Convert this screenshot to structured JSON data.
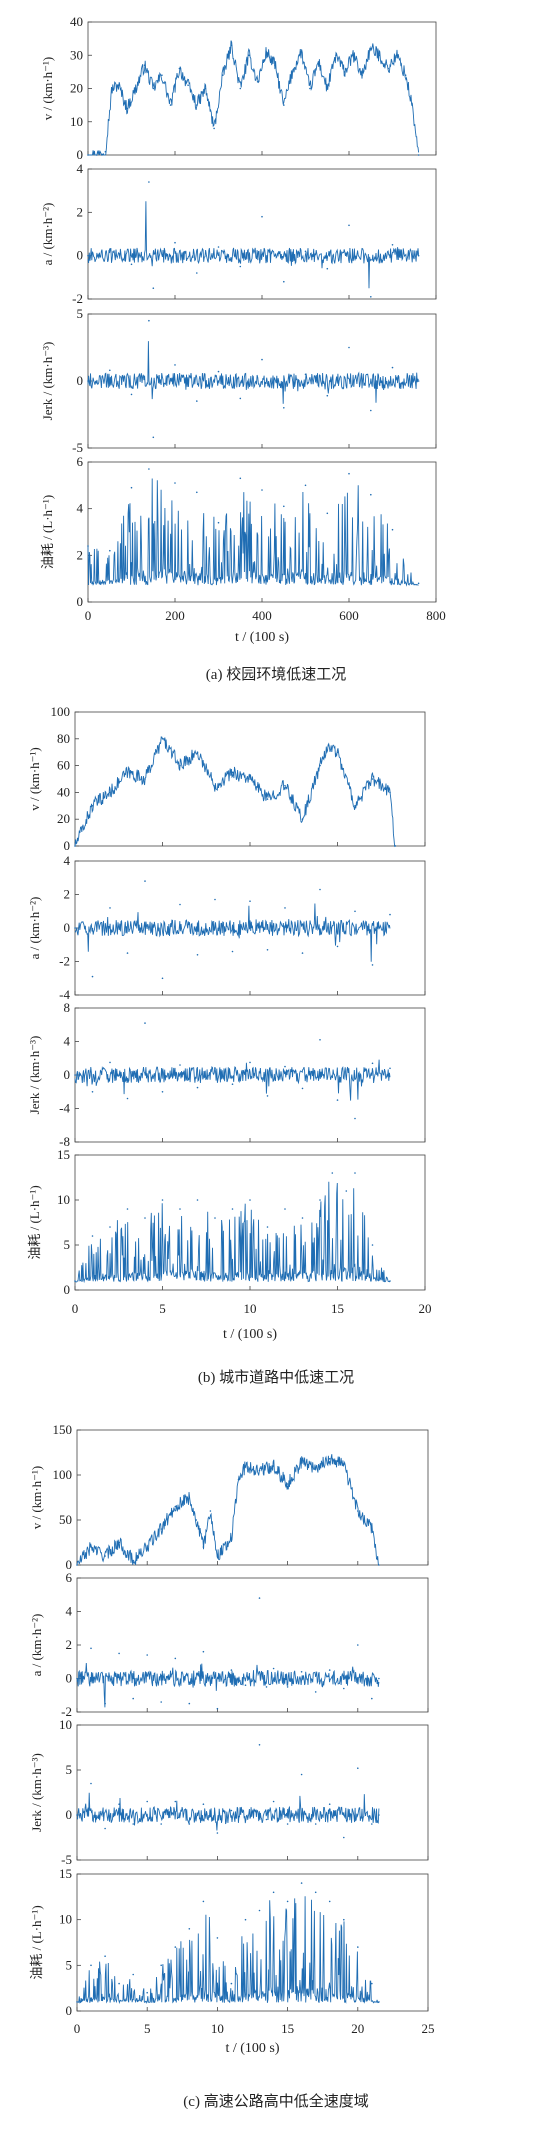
{
  "colors": {
    "line": "#1f6db3",
    "axis": "#444444",
    "text": "#222222"
  },
  "figures": [
    {
      "caption": "(a)  校园环境低速工况",
      "xlabel": "t / (100 s)",
      "xticks": [
        "0",
        "200",
        "400",
        "600",
        "800"
      ],
      "panels": [
        {
          "ylabel": "v / (km·h⁻¹)",
          "yticks": [
            "0",
            "10",
            "20",
            "30",
            "40"
          ]
        },
        {
          "ylabel": "a / (km·h⁻²)",
          "yticks": [
            "-2",
            "0",
            "2",
            "4"
          ]
        },
        {
          "ylabel": "Jerk / (km·h⁻³)",
          "yticks": [
            "-5",
            "0",
            "5"
          ]
        },
        {
          "ylabel": "油耗 / (L·h⁻¹)",
          "yticks": [
            "0",
            "2",
            "4",
            "6"
          ]
        }
      ]
    },
    {
      "caption": "(b)  城市道路中低速工况",
      "xlabel": "t / (100 s)",
      "xticks": [
        "0",
        "5",
        "10",
        "15",
        "20"
      ],
      "panels": [
        {
          "ylabel": "v / (km·h⁻¹)",
          "yticks": [
            "0",
            "20",
            "40",
            "60",
            "80",
            "100"
          ]
        },
        {
          "ylabel": "a / (km·h⁻²)",
          "yticks": [
            "-4",
            "-2",
            "0",
            "2",
            "4"
          ]
        },
        {
          "ylabel": "Jerk / (km·h⁻³)",
          "yticks": [
            "-8",
            "-4",
            "0",
            "4",
            "8"
          ]
        },
        {
          "ylabel": "油耗 / (L·h⁻¹)",
          "yticks": [
            "0",
            "5",
            "10",
            "15"
          ]
        }
      ]
    },
    {
      "caption": "(c)  高速公路高中低全速度域",
      "xlabel": "t / (100 s)",
      "xticks": [
        "0",
        "5",
        "10",
        "15",
        "20",
        "25"
      ],
      "panels": [
        {
          "ylabel": "v / (km·h⁻¹)",
          "yticks": [
            "0",
            "50",
            "100",
            "150"
          ]
        },
        {
          "ylabel": "a / (km·h⁻²)",
          "yticks": [
            "-2",
            "0",
            "2",
            "4",
            "6"
          ]
        },
        {
          "ylabel": "Jerk / (km·h⁻³)",
          "yticks": [
            "-5",
            "0",
            "5",
            "10"
          ]
        },
        {
          "ylabel": "油耗 / (L·h⁻¹)",
          "yticks": [
            "0",
            "5",
            "10",
            "15"
          ]
        }
      ]
    }
  ],
  "chart_data": [
    {
      "type": "line",
      "title": "(a)  校园环境低速工况",
      "xlabel": "t / (100 s)",
      "xlim": [
        0,
        800
      ],
      "subplots": [
        {
          "ylabel": "v / (km·h⁻¹)",
          "ylim": [
            0,
            40
          ],
          "x": [
            0,
            20,
            40,
            55,
            70,
            90,
            110,
            130,
            150,
            170,
            190,
            210,
            230,
            250,
            270,
            290,
            310,
            330,
            350,
            370,
            390,
            410,
            430,
            450,
            470,
            490,
            510,
            530,
            550,
            570,
            590,
            610,
            630,
            650,
            670,
            690,
            710,
            730,
            745,
            760
          ],
          "y": [
            0,
            0,
            1,
            20,
            21,
            14,
            20,
            27,
            20,
            24,
            15,
            26,
            21,
            15,
            20,
            8,
            24,
            33,
            20,
            30,
            22,
            31,
            27,
            15,
            25,
            31,
            20,
            28,
            20,
            30,
            25,
            30,
            24,
            32,
            30,
            26,
            30,
            24,
            15,
            0
          ]
        },
        {
          "ylabel": "a / (km·h⁻²)",
          "ylim": [
            -2,
            4
          ],
          "x": [
            0,
            50,
            100,
            140,
            150,
            200,
            250,
            300,
            350,
            400,
            450,
            500,
            550,
            600,
            650,
            700,
            760
          ],
          "y": [
            0,
            0.3,
            -0.4,
            3.4,
            -1.5,
            0.6,
            -0.8,
            0.4,
            -0.5,
            1.8,
            -1.2,
            0.2,
            -0.6,
            1.4,
            -1.9,
            0.5,
            0
          ]
        },
        {
          "ylabel": "Jerk / (km·h⁻³)",
          "ylim": [
            -5,
            5
          ],
          "x": [
            0,
            50,
            100,
            140,
            150,
            200,
            250,
            300,
            350,
            400,
            450,
            500,
            550,
            600,
            650,
            700,
            760
          ],
          "y": [
            0,
            0.8,
            -1,
            4.5,
            -4.2,
            1.2,
            -1.5,
            0.7,
            -1.3,
            1.6,
            -2,
            0.5,
            -1.1,
            2.5,
            -2.2,
            1,
            0
          ]
        },
        {
          "ylabel": "油耗 / (L·h⁻¹)",
          "ylim": [
            0,
            6
          ],
          "x": [
            0,
            50,
            100,
            140,
            200,
            250,
            300,
            350,
            400,
            450,
            500,
            550,
            600,
            650,
            700,
            760
          ],
          "y": [
            2.4,
            2.2,
            4.9,
            5.7,
            5.1,
            4.7,
            3.4,
            5.3,
            4.8,
            4.1,
            5.0,
            3.8,
            5.5,
            4.6,
            3.1,
            0.8
          ]
        }
      ]
    },
    {
      "type": "line",
      "title": "(b)  城市道路中低速工况",
      "xlabel": "t / (100 s)",
      "xlim": [
        0,
        20
      ],
      "subplots": [
        {
          "ylabel": "v / (km·h⁻¹)",
          "ylim": [
            0,
            100
          ],
          "x": [
            0,
            1,
            2,
            3,
            4,
            5,
            6,
            7,
            8,
            9,
            10,
            11,
            12,
            13,
            14,
            14.5,
            15,
            16,
            17,
            18,
            18.3
          ],
          "y": [
            0,
            30,
            40,
            55,
            50,
            80,
            60,
            70,
            45,
            55,
            50,
            35,
            45,
            20,
            60,
            75,
            70,
            30,
            50,
            40,
            0
          ]
        },
        {
          "ylabel": "a / (km·h⁻²)",
          "ylim": [
            -4,
            4
          ],
          "x": [
            0,
            1,
            2,
            3,
            4,
            5,
            6,
            7,
            8,
            9,
            10,
            11,
            12,
            13,
            14,
            15,
            16,
            17,
            18
          ],
          "y": [
            0,
            -2.9,
            1.2,
            -1.5,
            2.8,
            -3,
            1.4,
            -1.6,
            1.7,
            -1.4,
            1.6,
            -1.3,
            1.2,
            -1.5,
            2.3,
            -1.1,
            1.0,
            -2.2,
            0.8
          ]
        },
        {
          "ylabel": "Jerk / (km·h⁻³)",
          "ylim": [
            -8,
            8
          ],
          "x": [
            0,
            1,
            2,
            3,
            4,
            5,
            6,
            7,
            8,
            9,
            10,
            11,
            12,
            13,
            14,
            15,
            16,
            17,
            18
          ],
          "y": [
            0,
            -2,
            1.5,
            -2.8,
            6.2,
            -2,
            1.2,
            -1.5,
            0.8,
            -1.1,
            1.5,
            -2.5,
            1.0,
            -1.6,
            4.2,
            -3,
            -5.2,
            1.4,
            0.8
          ]
        },
        {
          "ylabel": "油耗 / (L·h⁻¹)",
          "ylim": [
            0,
            15
          ],
          "x": [
            0,
            1,
            2,
            3,
            4,
            5,
            6,
            7,
            8,
            9,
            10,
            11,
            12,
            13,
            14,
            14.7,
            15.5,
            16,
            17,
            18
          ],
          "y": [
            1,
            6,
            7,
            9,
            8,
            10,
            9,
            10,
            8,
            9,
            10,
            7,
            9,
            8,
            10,
            13,
            11,
            13,
            5,
            1
          ]
        }
      ]
    },
    {
      "type": "line",
      "title": "(c)  高速公路高中低全速度域",
      "xlabel": "t / (100 s)",
      "xlim": [
        0,
        25
      ],
      "subplots": [
        {
          "ylabel": "v / (km·h⁻¹)",
          "ylim": [
            0,
            150
          ],
          "x": [
            0,
            1,
            2,
            3,
            4,
            5,
            6,
            7,
            8,
            8.5,
            9,
            9.5,
            10,
            11,
            11.5,
            12,
            13,
            14,
            15,
            16,
            17,
            18,
            19,
            20,
            21,
            21.5
          ],
          "y": [
            0,
            20,
            10,
            25,
            5,
            20,
            40,
            65,
            75,
            50,
            20,
            60,
            10,
            30,
            95,
            110,
            105,
            110,
            90,
            115,
            108,
            118,
            112,
            60,
            40,
            0
          ]
        },
        {
          "ylabel": "a / (km·h⁻²)",
          "ylim": [
            -2,
            6
          ],
          "x": [
            0,
            1,
            2,
            3,
            4,
            5,
            6,
            7,
            8,
            9,
            10,
            11,
            12,
            13,
            13.5,
            14,
            15,
            16,
            17,
            18,
            19,
            20,
            21,
            21.5
          ],
          "y": [
            0,
            1.8,
            -1.5,
            1.5,
            -1.2,
            1.4,
            -1.4,
            1.2,
            -1.5,
            1.6,
            -1.8,
            0.5,
            -0.4,
            4.8,
            -0.5,
            0.6,
            -0.5,
            0.4,
            -0.8,
            0.5,
            -0.6,
            2.0,
            -1.2,
            0
          ]
        },
        {
          "ylabel": "Jerk / (km·h⁻³)",
          "ylim": [
            -5,
            10
          ],
          "x": [
            0,
            1,
            2,
            3,
            4,
            5,
            6,
            7,
            8,
            9,
            10,
            11,
            12,
            13,
            13.5,
            14,
            15,
            16,
            17,
            18,
            19,
            20,
            21,
            21.5
          ],
          "y": [
            0,
            3.5,
            -1.5,
            1.2,
            -1,
            1.5,
            -1,
            1.5,
            -1,
            1.2,
            -2,
            0.5,
            -0.5,
            7.8,
            -0.5,
            1.5,
            -1,
            4.5,
            -1,
            1.2,
            -2.5,
            5.2,
            -1,
            0
          ]
        },
        {
          "ylabel": "油耗 / (L·h⁻¹)",
          "ylim": [
            0,
            15
          ],
          "x": [
            0,
            1,
            2,
            3,
            4,
            5,
            6,
            7,
            8,
            9,
            10,
            11,
            12,
            13,
            14,
            15,
            16,
            17,
            18,
            19,
            20,
            21,
            21.5
          ],
          "y": [
            1,
            5,
            6,
            3,
            4,
            2,
            5,
            7,
            9,
            12,
            8,
            3,
            10,
            11,
            13,
            12,
            14,
            13,
            12,
            10,
            7,
            3,
            1
          ]
        }
      ]
    }
  ]
}
